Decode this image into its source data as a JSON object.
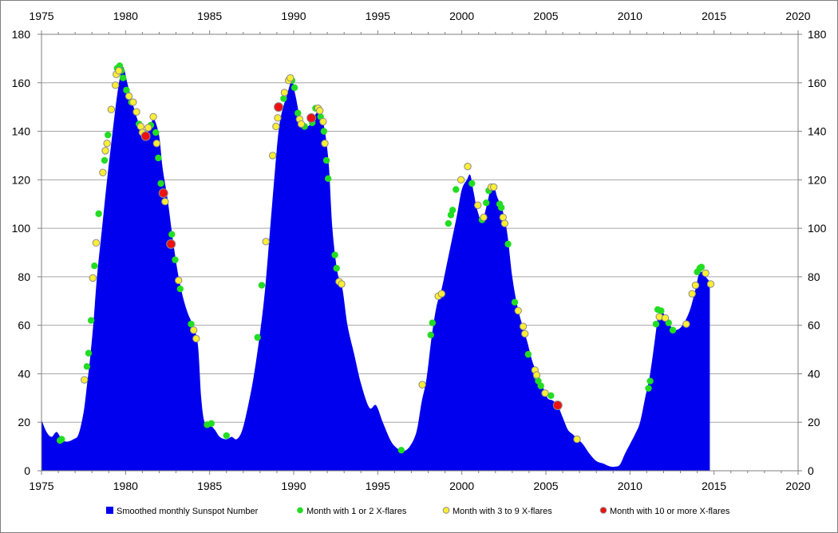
{
  "chart_data": {
    "type": "area",
    "title": "",
    "xlabel": "",
    "ylabel": "",
    "xlim": [
      1975,
      2020
    ],
    "ylim": [
      0,
      180
    ],
    "x_ticks": [
      "1975",
      "1980",
      "1985",
      "1990",
      "1995",
      "2000",
      "2005",
      "2010",
      "2015",
      "2020"
    ],
    "y_ticks": [
      "0",
      "20",
      "40",
      "60",
      "80",
      "100",
      "120",
      "140",
      "160",
      "180"
    ],
    "grid": "horizontal",
    "legend_position": "bottom",
    "colors": {
      "area": "#0000ee",
      "green": "#22dd22",
      "yellow": "#ffee33",
      "red": "#ee1111",
      "marker_edge": "#8a8a8a",
      "grid": "#a6a6a6"
    },
    "legend": [
      {
        "key": "area",
        "label": "Smoothed monthly Sunspot Number"
      },
      {
        "key": "green",
        "label": "Month with 1 or 2 X-flares"
      },
      {
        "key": "yellow",
        "label": "Month with 3 to 9 X-flares"
      },
      {
        "key": "red",
        "label": "Month with 10 or more X-flares"
      }
    ],
    "series": [
      {
        "name": "Smoothed monthly Sunspot Number",
        "points": [
          [
            1975.0,
            21
          ],
          [
            1975.3,
            16
          ],
          [
            1975.6,
            14
          ],
          [
            1975.9,
            16
          ],
          [
            1976.2,
            13
          ],
          [
            1976.5,
            12
          ],
          [
            1976.9,
            13
          ],
          [
            1977.2,
            15
          ],
          [
            1977.5,
            24
          ],
          [
            1977.7,
            35
          ],
          [
            1977.9,
            47
          ],
          [
            1978.1,
            62
          ],
          [
            1978.3,
            80
          ],
          [
            1978.6,
            100
          ],
          [
            1978.9,
            120
          ],
          [
            1979.2,
            138
          ],
          [
            1979.5,
            155
          ],
          [
            1979.75,
            165
          ],
          [
            1979.9,
            166
          ],
          [
            1980.1,
            160
          ],
          [
            1980.4,
            152
          ],
          [
            1980.7,
            145
          ],
          [
            1981.0,
            140
          ],
          [
            1981.2,
            138
          ],
          [
            1981.5,
            143
          ],
          [
            1981.7,
            145
          ],
          [
            1982.0,
            138
          ],
          [
            1982.2,
            125
          ],
          [
            1982.5,
            112
          ],
          [
            1982.8,
            96
          ],
          [
            1983.1,
            82
          ],
          [
            1983.4,
            72
          ],
          [
            1983.7,
            65
          ],
          [
            1984.0,
            60
          ],
          [
            1984.3,
            52
          ],
          [
            1984.5,
            30
          ],
          [
            1984.7,
            20
          ],
          [
            1985.0,
            19
          ],
          [
            1985.3,
            17
          ],
          [
            1985.6,
            14
          ],
          [
            1986.0,
            13
          ],
          [
            1986.3,
            14
          ],
          [
            1986.6,
            13
          ],
          [
            1986.9,
            16
          ],
          [
            1987.2,
            24
          ],
          [
            1987.6,
            38
          ],
          [
            1988.0,
            57
          ],
          [
            1988.3,
            75
          ],
          [
            1988.6,
            100
          ],
          [
            1988.9,
            125
          ],
          [
            1989.1,
            140
          ],
          [
            1989.3,
            148
          ],
          [
            1989.6,
            155
          ],
          [
            1989.9,
            161
          ],
          [
            1990.1,
            155
          ],
          [
            1990.4,
            145
          ],
          [
            1990.7,
            142
          ],
          [
            1991.0,
            143
          ],
          [
            1991.3,
            147
          ],
          [
            1991.5,
            148
          ],
          [
            1991.7,
            145
          ],
          [
            1991.9,
            138
          ],
          [
            1992.1,
            125
          ],
          [
            1992.3,
            100
          ],
          [
            1992.6,
            82
          ],
          [
            1992.9,
            75
          ],
          [
            1993.2,
            60
          ],
          [
            1993.6,
            48
          ],
          [
            1994.0,
            36
          ],
          [
            1994.5,
            26
          ],
          [
            1994.9,
            27
          ],
          [
            1995.3,
            20
          ],
          [
            1995.8,
            12
          ],
          [
            1996.2,
            9
          ],
          [
            1996.5,
            8
          ],
          [
            1996.9,
            10
          ],
          [
            1997.3,
            16
          ],
          [
            1997.6,
            28
          ],
          [
            1997.9,
            38
          ],
          [
            1998.2,
            55
          ],
          [
            1998.5,
            68
          ],
          [
            1998.8,
            75
          ],
          [
            1999.1,
            85
          ],
          [
            1999.4,
            95
          ],
          [
            1999.7,
            105
          ],
          [
            2000.0,
            116
          ],
          [
            2000.3,
            120
          ],
          [
            2000.5,
            122
          ],
          [
            2000.7,
            115
          ],
          [
            2000.9,
            108
          ],
          [
            2001.2,
            103
          ],
          [
            2001.5,
            110
          ],
          [
            2001.7,
            116
          ],
          [
            2001.9,
            118
          ],
          [
            2002.1,
            113
          ],
          [
            2002.4,
            108
          ],
          [
            2002.7,
            98
          ],
          [
            2003.0,
            80
          ],
          [
            2003.3,
            68
          ],
          [
            2003.6,
            60
          ],
          [
            2003.9,
            53
          ],
          [
            2004.2,
            45
          ],
          [
            2004.5,
            40
          ],
          [
            2004.8,
            35
          ],
          [
            2005.1,
            30
          ],
          [
            2005.4,
            29
          ],
          [
            2005.7,
            27
          ],
          [
            2006.0,
            22
          ],
          [
            2006.3,
            17
          ],
          [
            2006.6,
            15
          ],
          [
            2006.9,
            13
          ],
          [
            2007.2,
            11
          ],
          [
            2007.6,
            7
          ],
          [
            2008.0,
            4
          ],
          [
            2008.4,
            3
          ],
          [
            2008.8,
            1.8
          ],
          [
            2009.1,
            1.7
          ],
          [
            2009.4,
            2.5
          ],
          [
            2009.7,
            7
          ],
          [
            2010.0,
            11
          ],
          [
            2010.3,
            15
          ],
          [
            2010.6,
            20
          ],
          [
            2010.9,
            30
          ],
          [
            2011.2,
            40
          ],
          [
            2011.5,
            55
          ],
          [
            2011.7,
            65
          ],
          [
            2011.9,
            66
          ],
          [
            2012.2,
            62
          ],
          [
            2012.5,
            59
          ],
          [
            2012.7,
            58
          ],
          [
            2013.0,
            59
          ],
          [
            2013.3,
            62
          ],
          [
            2013.6,
            67
          ],
          [
            2013.9,
            75
          ],
          [
            2014.1,
            81
          ],
          [
            2014.3,
            82
          ],
          [
            2014.5,
            80
          ],
          [
            2014.75,
            78
          ]
        ]
      },
      {
        "name": "Month with 1 or 2 X-flares",
        "points": [
          [
            1976.1,
            12.5
          ],
          [
            1976.2,
            13
          ],
          [
            1977.7,
            43
          ],
          [
            1977.8,
            48.5
          ],
          [
            1977.95,
            62
          ],
          [
            1978.15,
            84.5
          ],
          [
            1978.4,
            106
          ],
          [
            1978.75,
            128
          ],
          [
            1978.95,
            138.5
          ],
          [
            1979.5,
            166
          ],
          [
            1979.65,
            167
          ],
          [
            1979.75,
            165
          ],
          [
            1979.85,
            162
          ],
          [
            1980.05,
            157
          ],
          [
            1980.35,
            152
          ],
          [
            1980.8,
            143
          ],
          [
            1981.5,
            142.5
          ],
          [
            1981.8,
            139.5
          ],
          [
            1981.95,
            129
          ],
          [
            1982.1,
            118.5
          ],
          [
            1982.75,
            97.5
          ],
          [
            1982.95,
            87
          ],
          [
            1983.25,
            75
          ],
          [
            1983.9,
            60.5
          ],
          [
            1984.85,
            19
          ],
          [
            1985.1,
            19.5
          ],
          [
            1986.0,
            14.5
          ],
          [
            1987.85,
            55
          ],
          [
            1988.1,
            76.5
          ],
          [
            1989.4,
            153.5
          ],
          [
            1989.9,
            161
          ],
          [
            1990.05,
            158
          ],
          [
            1990.25,
            147.5
          ],
          [
            1990.65,
            142
          ],
          [
            1991.1,
            143.5
          ],
          [
            1991.3,
            149.5
          ],
          [
            1991.6,
            146
          ],
          [
            1991.8,
            140
          ],
          [
            1991.95,
            128
          ],
          [
            1992.05,
            120.5
          ],
          [
            1992.45,
            89
          ],
          [
            1992.55,
            83.5
          ],
          [
            1996.4,
            8.5
          ],
          [
            1998.15,
            56
          ],
          [
            1998.25,
            61
          ],
          [
            1999.2,
            102
          ],
          [
            1999.35,
            105.5
          ],
          [
            1999.45,
            107.5
          ],
          [
            1999.65,
            116
          ],
          [
            2000.6,
            118.5
          ],
          [
            2001.2,
            103.5
          ],
          [
            2001.45,
            110.5
          ],
          [
            2001.6,
            115.5
          ],
          [
            2002.25,
            110
          ],
          [
            2002.35,
            108.5
          ],
          [
            2002.75,
            93.5
          ],
          [
            2003.15,
            69.5
          ],
          [
            2003.95,
            48
          ],
          [
            2004.45,
            39
          ],
          [
            2004.55,
            37
          ],
          [
            2004.7,
            35
          ],
          [
            2005.3,
            31
          ],
          [
            2011.1,
            34
          ],
          [
            2011.2,
            37
          ],
          [
            2011.55,
            60.5
          ],
          [
            2011.65,
            66.5
          ],
          [
            2011.85,
            66
          ],
          [
            2012.3,
            61
          ],
          [
            2012.55,
            58
          ],
          [
            2014.0,
            82
          ],
          [
            2014.15,
            83.5
          ],
          [
            2014.25,
            84
          ]
        ]
      },
      {
        "name": "Month with 3 to 9 X-flares",
        "points": [
          [
            1977.55,
            37.5
          ],
          [
            1978.05,
            79.5
          ],
          [
            1978.25,
            94
          ],
          [
            1978.65,
            123
          ],
          [
            1978.8,
            132
          ],
          [
            1978.9,
            135
          ],
          [
            1979.15,
            149
          ],
          [
            1979.4,
            159
          ],
          [
            1979.45,
            163.5
          ],
          [
            1979.6,
            165
          ],
          [
            1980.2,
            154.5
          ],
          [
            1980.45,
            152
          ],
          [
            1980.65,
            148
          ],
          [
            1980.9,
            142
          ],
          [
            1981.0,
            139.5
          ],
          [
            1981.35,
            141.5
          ],
          [
            1981.65,
            146
          ],
          [
            1981.85,
            135
          ],
          [
            1982.35,
            111
          ],
          [
            1983.15,
            78.5
          ],
          [
            1984.05,
            58
          ],
          [
            1984.2,
            54.5
          ],
          [
            1988.35,
            94.5
          ],
          [
            1988.75,
            130
          ],
          [
            1988.95,
            142
          ],
          [
            1989.05,
            145.5
          ],
          [
            1989.45,
            156
          ],
          [
            1989.7,
            161
          ],
          [
            1989.8,
            162
          ],
          [
            1990.35,
            145
          ],
          [
            1990.45,
            143
          ],
          [
            1991.45,
            149.5
          ],
          [
            1991.55,
            148.5
          ],
          [
            1991.75,
            144
          ],
          [
            1991.85,
            135
          ],
          [
            1992.7,
            78
          ],
          [
            1992.85,
            77
          ],
          [
            1997.65,
            35.5
          ],
          [
            1998.6,
            72
          ],
          [
            1998.8,
            73
          ],
          [
            1999.95,
            120
          ],
          [
            2000.35,
            125.5
          ],
          [
            2000.95,
            109.5
          ],
          [
            2001.3,
            104.5
          ],
          [
            2001.75,
            117
          ],
          [
            2001.9,
            117
          ],
          [
            2002.45,
            104.5
          ],
          [
            2002.55,
            102
          ],
          [
            2003.35,
            66
          ],
          [
            2003.65,
            59.5
          ],
          [
            2003.75,
            56.5
          ],
          [
            2004.35,
            41.5
          ],
          [
            2004.45,
            39.5
          ],
          [
            2004.95,
            32
          ],
          [
            2006.85,
            13
          ],
          [
            2011.75,
            63.5
          ],
          [
            2012.1,
            63
          ],
          [
            2013.35,
            60.5
          ],
          [
            2013.7,
            73
          ],
          [
            2013.9,
            76.5
          ],
          [
            2014.5,
            81.5
          ],
          [
            2014.8,
            77
          ]
        ]
      },
      {
        "name": "Month with 10 or more X-flares",
        "points": [
          [
            1981.2,
            138
          ],
          [
            1982.25,
            114.5
          ],
          [
            1982.7,
            93.5
          ],
          [
            1989.1,
            150
          ],
          [
            1991.05,
            145.5
          ],
          [
            2005.7,
            27
          ]
        ]
      }
    ]
  }
}
